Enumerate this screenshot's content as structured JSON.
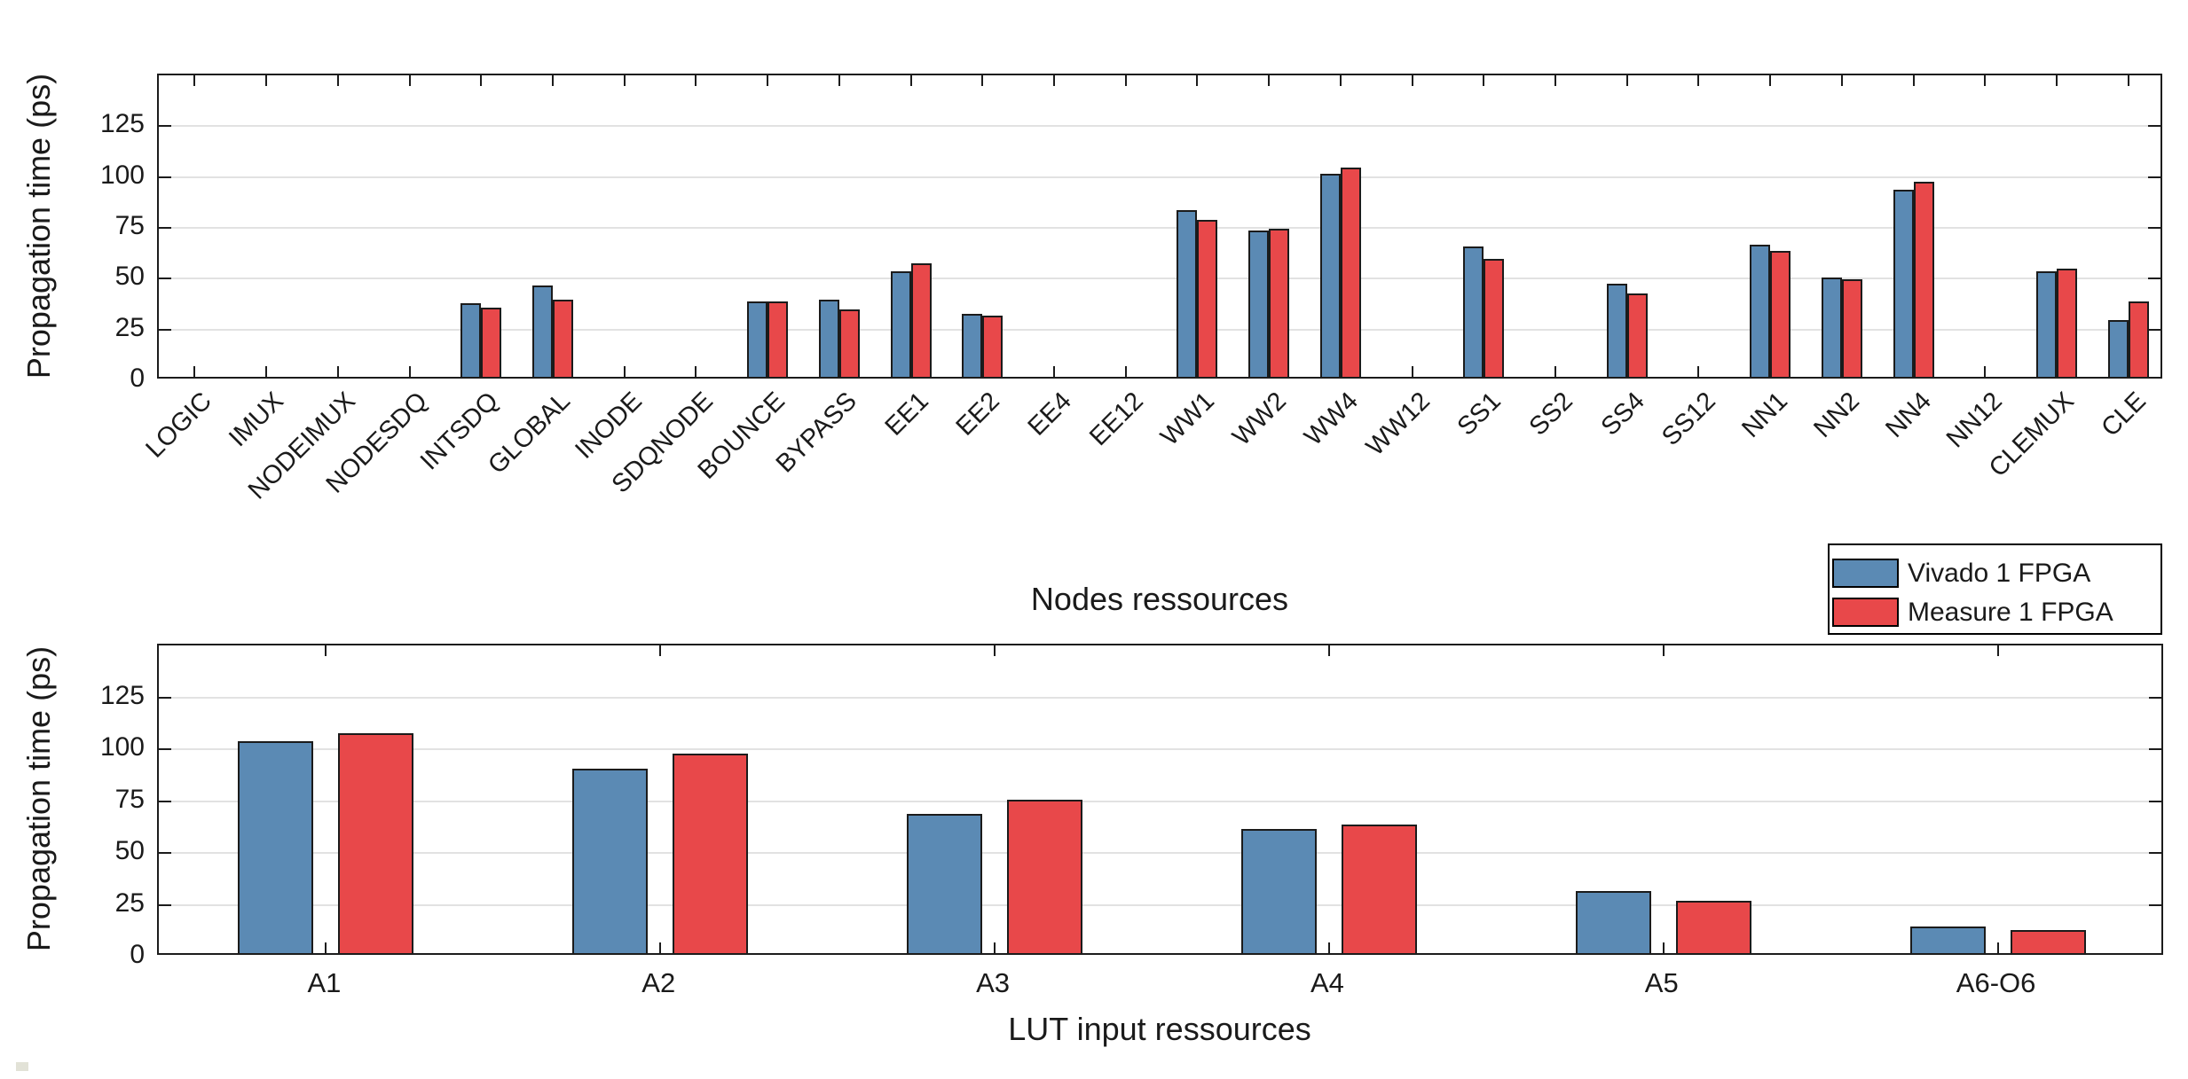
{
  "colors": {
    "vivado_blue": "#5b8ab4",
    "measure_red": "#e8484a",
    "grid": "#e2e2e2",
    "axis": "#1c1c1c",
    "background": "#ffffff"
  },
  "legend": {
    "items": [
      {
        "label": "Vivado 1 FPGA",
        "color": "#5b8ab4"
      },
      {
        "label": "Measure 1 FPGA",
        "color": "#e8484a"
      }
    ]
  },
  "chart_data": [
    {
      "type": "bar",
      "title": "",
      "xlabel": "Nodes ressources",
      "ylabel": "Propagation time (ps)",
      "ylim": [
        0,
        150
      ],
      "yticks": [
        0,
        25,
        50,
        75,
        100,
        125
      ],
      "grid": true,
      "legend_position": "outside-bottom-right",
      "categories": [
        "LOGIC",
        "IMUX",
        "NODEIMUX",
        "NODESDQ",
        "INTSDQ",
        "GLOBAL",
        "INODE",
        "SDQNODE",
        "BOUNCE",
        "BYPASS",
        "EE1",
        "EE2",
        "EE4",
        "EE12",
        "WW1",
        "WW2",
        "WW4",
        "WW12",
        "SS1",
        "SS2",
        "SS4",
        "SS12",
        "NN1",
        "NN2",
        "NN4",
        "NN12",
        "CLEMUX",
        "CLE"
      ],
      "series": [
        {
          "name": "Vivado 1 FPGA",
          "color": "#5b8ab4",
          "values": [
            0,
            0,
            0,
            0,
            36,
            45,
            0,
            0,
            37,
            38,
            52,
            31,
            0,
            0,
            82,
            72,
            100,
            0,
            64,
            0,
            46,
            0,
            65,
            49,
            92,
            0,
            52,
            28
          ]
        },
        {
          "name": "Measure 1 FPGA",
          "color": "#e8484a",
          "values": [
            0,
            0,
            0,
            0,
            34,
            38,
            0,
            0,
            37,
            33,
            56,
            30,
            0,
            0,
            77,
            73,
            103,
            0,
            58,
            0,
            41,
            0,
            62,
            48,
            96,
            0,
            53,
            37
          ]
        }
      ]
    },
    {
      "type": "bar",
      "title": "",
      "xlabel": "LUT input ressources",
      "ylabel": "Propagation time (ps)",
      "ylim": [
        0,
        150
      ],
      "yticks": [
        0,
        25,
        50,
        75,
        100,
        125
      ],
      "grid": true,
      "categories": [
        "A1",
        "A2",
        "A3",
        "A4",
        "A5",
        "A6-O6"
      ],
      "series": [
        {
          "name": "Vivado 1 FPGA",
          "color": "#5b8ab4",
          "values": [
            102,
            89,
            67,
            60,
            30,
            13
          ]
        },
        {
          "name": "Measure 1 FPGA",
          "color": "#e8484a",
          "values": [
            106,
            96,
            74,
            62,
            25,
            11
          ]
        }
      ]
    }
  ]
}
